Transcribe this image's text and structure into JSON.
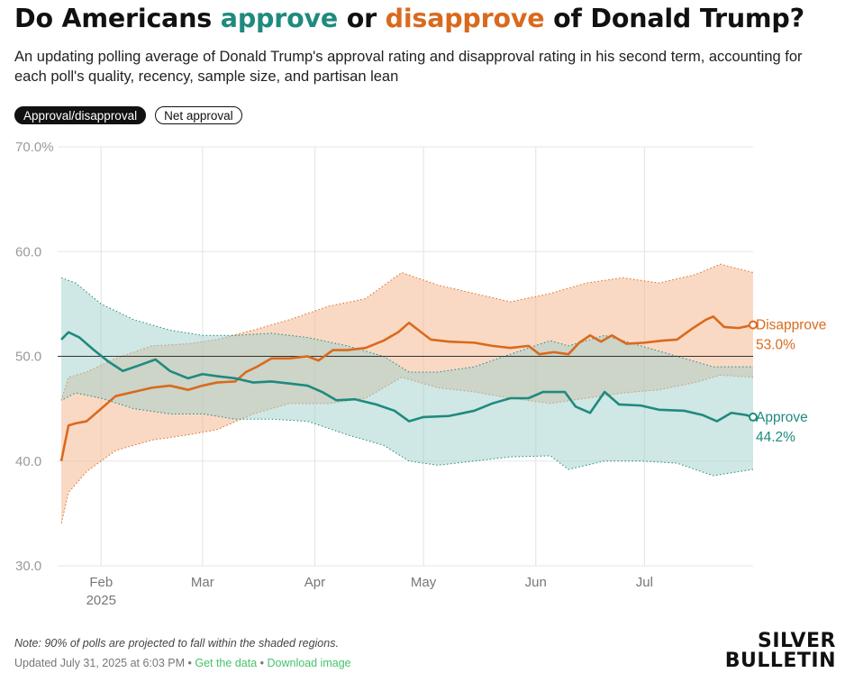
{
  "header": {
    "title_parts": [
      "Do Americans ",
      "approve",
      " or ",
      "disapprove",
      " of Donald Trump?"
    ],
    "subtitle": "An updating polling average of Donald Trump's approval rating and disapproval rating in his second term, accounting for each poll's quality, recency, sample size, and partisan lean"
  },
  "toggles": {
    "approval_label": "Approval/disapproval",
    "net_label": "Net approval",
    "selected": "Approval/disapproval"
  },
  "colors": {
    "approve": "#1f8a7e",
    "approve_band": "#9fd0cb",
    "disapprove": "#d96a1d",
    "disapprove_band": "#f5b48a",
    "grid": "#e6e6e6"
  },
  "chart_data": {
    "type": "line",
    "title": "",
    "xlabel": "",
    "ylabel": "",
    "ylim": [
      30,
      70
    ],
    "y_ticks": [
      30,
      40,
      50,
      60,
      70
    ],
    "y_tick_labels": [
      "30.0",
      "40.0",
      "50.0",
      "60.0",
      "70.0%"
    ],
    "reference_line": 50,
    "x_range": [
      "2025-01-20",
      "2025-07-31"
    ],
    "x_ticks": [
      {
        "date": "2025-02-01",
        "label": "Feb",
        "sublabel": "2025"
      },
      {
        "date": "2025-03-01",
        "label": "Mar",
        "sublabel": ""
      },
      {
        "date": "2025-04-01",
        "label": "Apr",
        "sublabel": ""
      },
      {
        "date": "2025-05-01",
        "label": "May",
        "sublabel": ""
      },
      {
        "date": "2025-06-01",
        "label": "Jun",
        "sublabel": ""
      },
      {
        "date": "2025-07-01",
        "label": "Jul",
        "sublabel": ""
      }
    ],
    "grid": true,
    "shaded_band": "90% poll interval",
    "series": [
      {
        "name": "Disapprove",
        "color": "#d96a1d",
        "end_label": "53.0%",
        "points": [
          [
            "2025-01-21",
            40.0
          ],
          [
            "2025-01-23",
            43.4
          ],
          [
            "2025-01-25",
            43.6
          ],
          [
            "2025-01-28",
            43.8
          ],
          [
            "2025-02-01",
            45.0
          ],
          [
            "2025-02-05",
            46.2
          ],
          [
            "2025-02-10",
            46.6
          ],
          [
            "2025-02-15",
            47.0
          ],
          [
            "2025-02-20",
            47.2
          ],
          [
            "2025-02-25",
            46.8
          ],
          [
            "2025-03-01",
            47.2
          ],
          [
            "2025-03-05",
            47.5
          ],
          [
            "2025-03-10",
            47.6
          ],
          [
            "2025-03-13",
            48.5
          ],
          [
            "2025-03-16",
            49.0
          ],
          [
            "2025-03-20",
            49.8
          ],
          [
            "2025-03-25",
            49.8
          ],
          [
            "2025-03-30",
            50.0
          ],
          [
            "2025-04-02",
            49.6
          ],
          [
            "2025-04-06",
            50.6
          ],
          [
            "2025-04-10",
            50.6
          ],
          [
            "2025-04-15",
            50.8
          ],
          [
            "2025-04-20",
            51.5
          ],
          [
            "2025-04-24",
            52.3
          ],
          [
            "2025-04-27",
            53.2
          ],
          [
            "2025-04-30",
            52.4
          ],
          [
            "2025-05-03",
            51.6
          ],
          [
            "2025-05-08",
            51.4
          ],
          [
            "2025-05-15",
            51.3
          ],
          [
            "2025-05-20",
            51.0
          ],
          [
            "2025-05-25",
            50.8
          ],
          [
            "2025-05-30",
            51.0
          ],
          [
            "2025-06-02",
            50.2
          ],
          [
            "2025-06-06",
            50.4
          ],
          [
            "2025-06-10",
            50.2
          ],
          [
            "2025-06-13",
            51.3
          ],
          [
            "2025-06-16",
            52.0
          ],
          [
            "2025-06-19",
            51.4
          ],
          [
            "2025-06-22",
            52.0
          ],
          [
            "2025-06-26",
            51.2
          ],
          [
            "2025-07-01",
            51.3
          ],
          [
            "2025-07-06",
            51.5
          ],
          [
            "2025-07-10",
            51.6
          ],
          [
            "2025-07-14",
            52.6
          ],
          [
            "2025-07-18",
            53.5
          ],
          [
            "2025-07-20",
            53.8
          ],
          [
            "2025-07-23",
            52.8
          ],
          [
            "2025-07-27",
            52.7
          ],
          [
            "2025-07-31",
            53.0
          ]
        ],
        "band": [
          [
            "2025-01-21",
            34.0,
            45.8
          ],
          [
            "2025-01-23",
            37.0,
            48.0
          ],
          [
            "2025-01-28",
            39.0,
            48.5
          ],
          [
            "2025-02-05",
            41.0,
            49.8
          ],
          [
            "2025-02-15",
            42.0,
            51.0
          ],
          [
            "2025-02-25",
            42.5,
            51.2
          ],
          [
            "2025-03-05",
            43.0,
            51.6
          ],
          [
            "2025-03-15",
            44.5,
            52.5
          ],
          [
            "2025-03-25",
            45.5,
            53.5
          ],
          [
            "2025-04-05",
            45.5,
            54.8
          ],
          [
            "2025-04-15",
            46.0,
            55.5
          ],
          [
            "2025-04-25",
            48.0,
            58.0
          ],
          [
            "2025-05-05",
            47.0,
            56.8
          ],
          [
            "2025-05-15",
            46.6,
            56.0
          ],
          [
            "2025-05-25",
            46.0,
            55.2
          ],
          [
            "2025-06-05",
            45.5,
            56.0
          ],
          [
            "2025-06-15",
            46.0,
            57.0
          ],
          [
            "2025-06-25",
            46.5,
            57.5
          ],
          [
            "2025-07-05",
            46.8,
            57.0
          ],
          [
            "2025-07-15",
            47.5,
            57.8
          ],
          [
            "2025-07-22",
            48.2,
            58.8
          ],
          [
            "2025-07-31",
            48.0,
            58.0
          ]
        ]
      },
      {
        "name": "Approve",
        "color": "#1f8a7e",
        "end_label": "44.2%",
        "points": [
          [
            "2025-01-21",
            51.6
          ],
          [
            "2025-01-23",
            52.3
          ],
          [
            "2025-01-26",
            51.8
          ],
          [
            "2025-01-30",
            50.6
          ],
          [
            "2025-02-03",
            49.5
          ],
          [
            "2025-02-07",
            48.6
          ],
          [
            "2025-02-12",
            49.2
          ],
          [
            "2025-02-16",
            49.7
          ],
          [
            "2025-02-20",
            48.6
          ],
          [
            "2025-02-25",
            47.9
          ],
          [
            "2025-03-01",
            48.3
          ],
          [
            "2025-03-05",
            48.1
          ],
          [
            "2025-03-10",
            47.9
          ],
          [
            "2025-03-15",
            47.5
          ],
          [
            "2025-03-20",
            47.6
          ],
          [
            "2025-03-25",
            47.4
          ],
          [
            "2025-03-30",
            47.2
          ],
          [
            "2025-04-03",
            46.6
          ],
          [
            "2025-04-07",
            45.8
          ],
          [
            "2025-04-12",
            45.9
          ],
          [
            "2025-04-18",
            45.4
          ],
          [
            "2025-04-23",
            44.8
          ],
          [
            "2025-04-27",
            43.8
          ],
          [
            "2025-05-01",
            44.2
          ],
          [
            "2025-05-08",
            44.3
          ],
          [
            "2025-05-15",
            44.8
          ],
          [
            "2025-05-20",
            45.5
          ],
          [
            "2025-05-25",
            46.0
          ],
          [
            "2025-05-30",
            46.0
          ],
          [
            "2025-06-03",
            46.6
          ],
          [
            "2025-06-09",
            46.6
          ],
          [
            "2025-06-12",
            45.2
          ],
          [
            "2025-06-16",
            44.6
          ],
          [
            "2025-06-20",
            46.6
          ],
          [
            "2025-06-24",
            45.4
          ],
          [
            "2025-06-30",
            45.3
          ],
          [
            "2025-07-05",
            44.9
          ],
          [
            "2025-07-12",
            44.8
          ],
          [
            "2025-07-17",
            44.4
          ],
          [
            "2025-07-21",
            43.8
          ],
          [
            "2025-07-25",
            44.6
          ],
          [
            "2025-07-29",
            44.4
          ],
          [
            "2025-07-31",
            44.2
          ]
        ],
        "band": [
          [
            "2025-01-21",
            45.8,
            57.5
          ],
          [
            "2025-01-25",
            46.5,
            57.0
          ],
          [
            "2025-02-01",
            46.0,
            55.0
          ],
          [
            "2025-02-10",
            45.0,
            53.5
          ],
          [
            "2025-02-20",
            44.5,
            52.5
          ],
          [
            "2025-03-01",
            44.5,
            52.0
          ],
          [
            "2025-03-10",
            44.0,
            52.0
          ],
          [
            "2025-03-20",
            44.0,
            52.2
          ],
          [
            "2025-03-30",
            43.8,
            51.8
          ],
          [
            "2025-04-10",
            42.5,
            51.0
          ],
          [
            "2025-04-20",
            41.5,
            50.0
          ],
          [
            "2025-04-27",
            40.0,
            48.5
          ],
          [
            "2025-05-05",
            39.6,
            48.5
          ],
          [
            "2025-05-15",
            40.0,
            49.0
          ],
          [
            "2025-05-25",
            40.4,
            50.2
          ],
          [
            "2025-06-05",
            40.5,
            51.5
          ],
          [
            "2025-06-10",
            39.2,
            51.0
          ],
          [
            "2025-06-20",
            40.0,
            52.0
          ],
          [
            "2025-06-30",
            40.0,
            51.0
          ],
          [
            "2025-07-10",
            39.8,
            50.0
          ],
          [
            "2025-07-20",
            38.6,
            49.0
          ],
          [
            "2025-07-31",
            39.2,
            49.0
          ]
        ]
      }
    ]
  },
  "footer": {
    "note": "Note: 90% of polls are projected to fall within the shaded regions.",
    "updated": "Updated July 31, 2025 at 6:03 PM",
    "separator": " • ",
    "get_data": "Get the data",
    "download": "Download image"
  },
  "logo": {
    "line1": "SILVER",
    "line2": "BULLETIN"
  }
}
